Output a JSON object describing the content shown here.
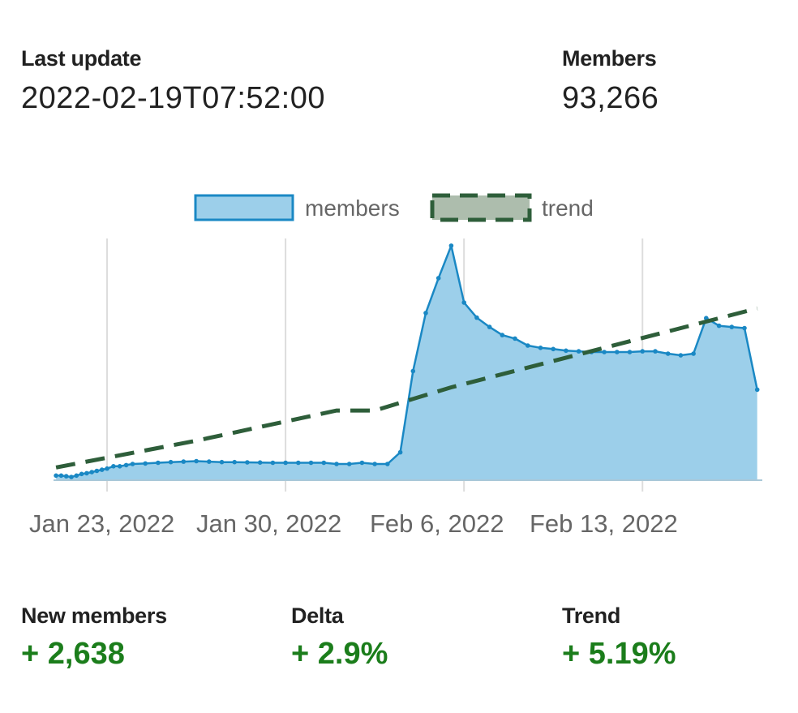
{
  "last_update": {
    "label": "Last update",
    "value": "2022-02-19T07:52:00"
  },
  "members": {
    "label": "Members",
    "value": "93,266"
  },
  "stats": {
    "new_members": {
      "label": "New members",
      "value": "+ 2,638"
    },
    "delta": {
      "label": "Delta",
      "value": "+ 2.9%"
    },
    "trend": {
      "label": "Trend",
      "value": "+ 5.19%"
    }
  },
  "colors": {
    "members_fill": "#9ccfea",
    "members_line": "#1a88c4",
    "trend_line": "#2e5e3a",
    "trend_legend_fill": "#adbdad",
    "positive": "#1b7d1b",
    "grid": "#dddddd"
  },
  "chart_data": {
    "type": "area",
    "legend": [
      "members",
      "trend"
    ],
    "legend_position": "top",
    "grid": true,
    "x_ticks": [
      "Jan 23, 2022",
      "Jan 30, 2022",
      "Feb 6, 2022",
      "Feb 13, 2022"
    ],
    "x_tick_days": [
      2,
      9,
      16,
      23
    ],
    "x_range_days": [
      -0.1,
      27.7
    ],
    "y_range": [
      -0.02,
      1.0
    ],
    "y_note": "relative level; the chart prints no y-axis",
    "series": [
      {
        "name": "members",
        "x_days": [
          0,
          0.2,
          0.4,
          0.6,
          0.8,
          1,
          1.2,
          1.4,
          1.6,
          1.8,
          2,
          2.25,
          2.5,
          2.75,
          3,
          3.5,
          4,
          4.5,
          5,
          5.5,
          6,
          6.5,
          7,
          7.5,
          8,
          8.5,
          9,
          9.5,
          10,
          10.5,
          11,
          11.5,
          12,
          12.5,
          13,
          13.5,
          14,
          14.5,
          15,
          15.5,
          16,
          16.5,
          17,
          17.5,
          18,
          18.5,
          19,
          19.5,
          20,
          20.5,
          21,
          21.5,
          22,
          22.5,
          23,
          23.5,
          24,
          24.5,
          25,
          25.5,
          26,
          26.5,
          27,
          27.5
        ],
        "values": [
          0.0,
          0.0,
          -0.003,
          -0.006,
          0.0,
          0.007,
          0.01,
          0.015,
          0.02,
          0.025,
          0.03,
          0.04,
          0.04,
          0.045,
          0.05,
          0.052,
          0.055,
          0.058,
          0.06,
          0.062,
          0.06,
          0.058,
          0.058,
          0.057,
          0.056,
          0.055,
          0.055,
          0.055,
          0.055,
          0.055,
          0.05,
          0.05,
          0.055,
          0.05,
          0.05,
          0.1,
          0.45,
          0.7,
          0.85,
          0.99,
          0.745,
          0.68,
          0.64,
          0.605,
          0.59,
          0.56,
          0.55,
          0.545,
          0.538,
          0.535,
          0.532,
          0.532,
          0.532,
          0.532,
          0.535,
          0.535,
          0.525,
          0.518,
          0.525,
          0.678,
          0.645,
          0.64,
          0.635,
          0.37
        ]
      },
      {
        "name": "trend",
        "x": [
          0,
          5.5,
          11,
          12.5,
          15.5,
          27.5
        ],
        "values": [
          0.035,
          0.15,
          0.28,
          0.28,
          0.38,
          0.72
        ]
      }
    ]
  }
}
